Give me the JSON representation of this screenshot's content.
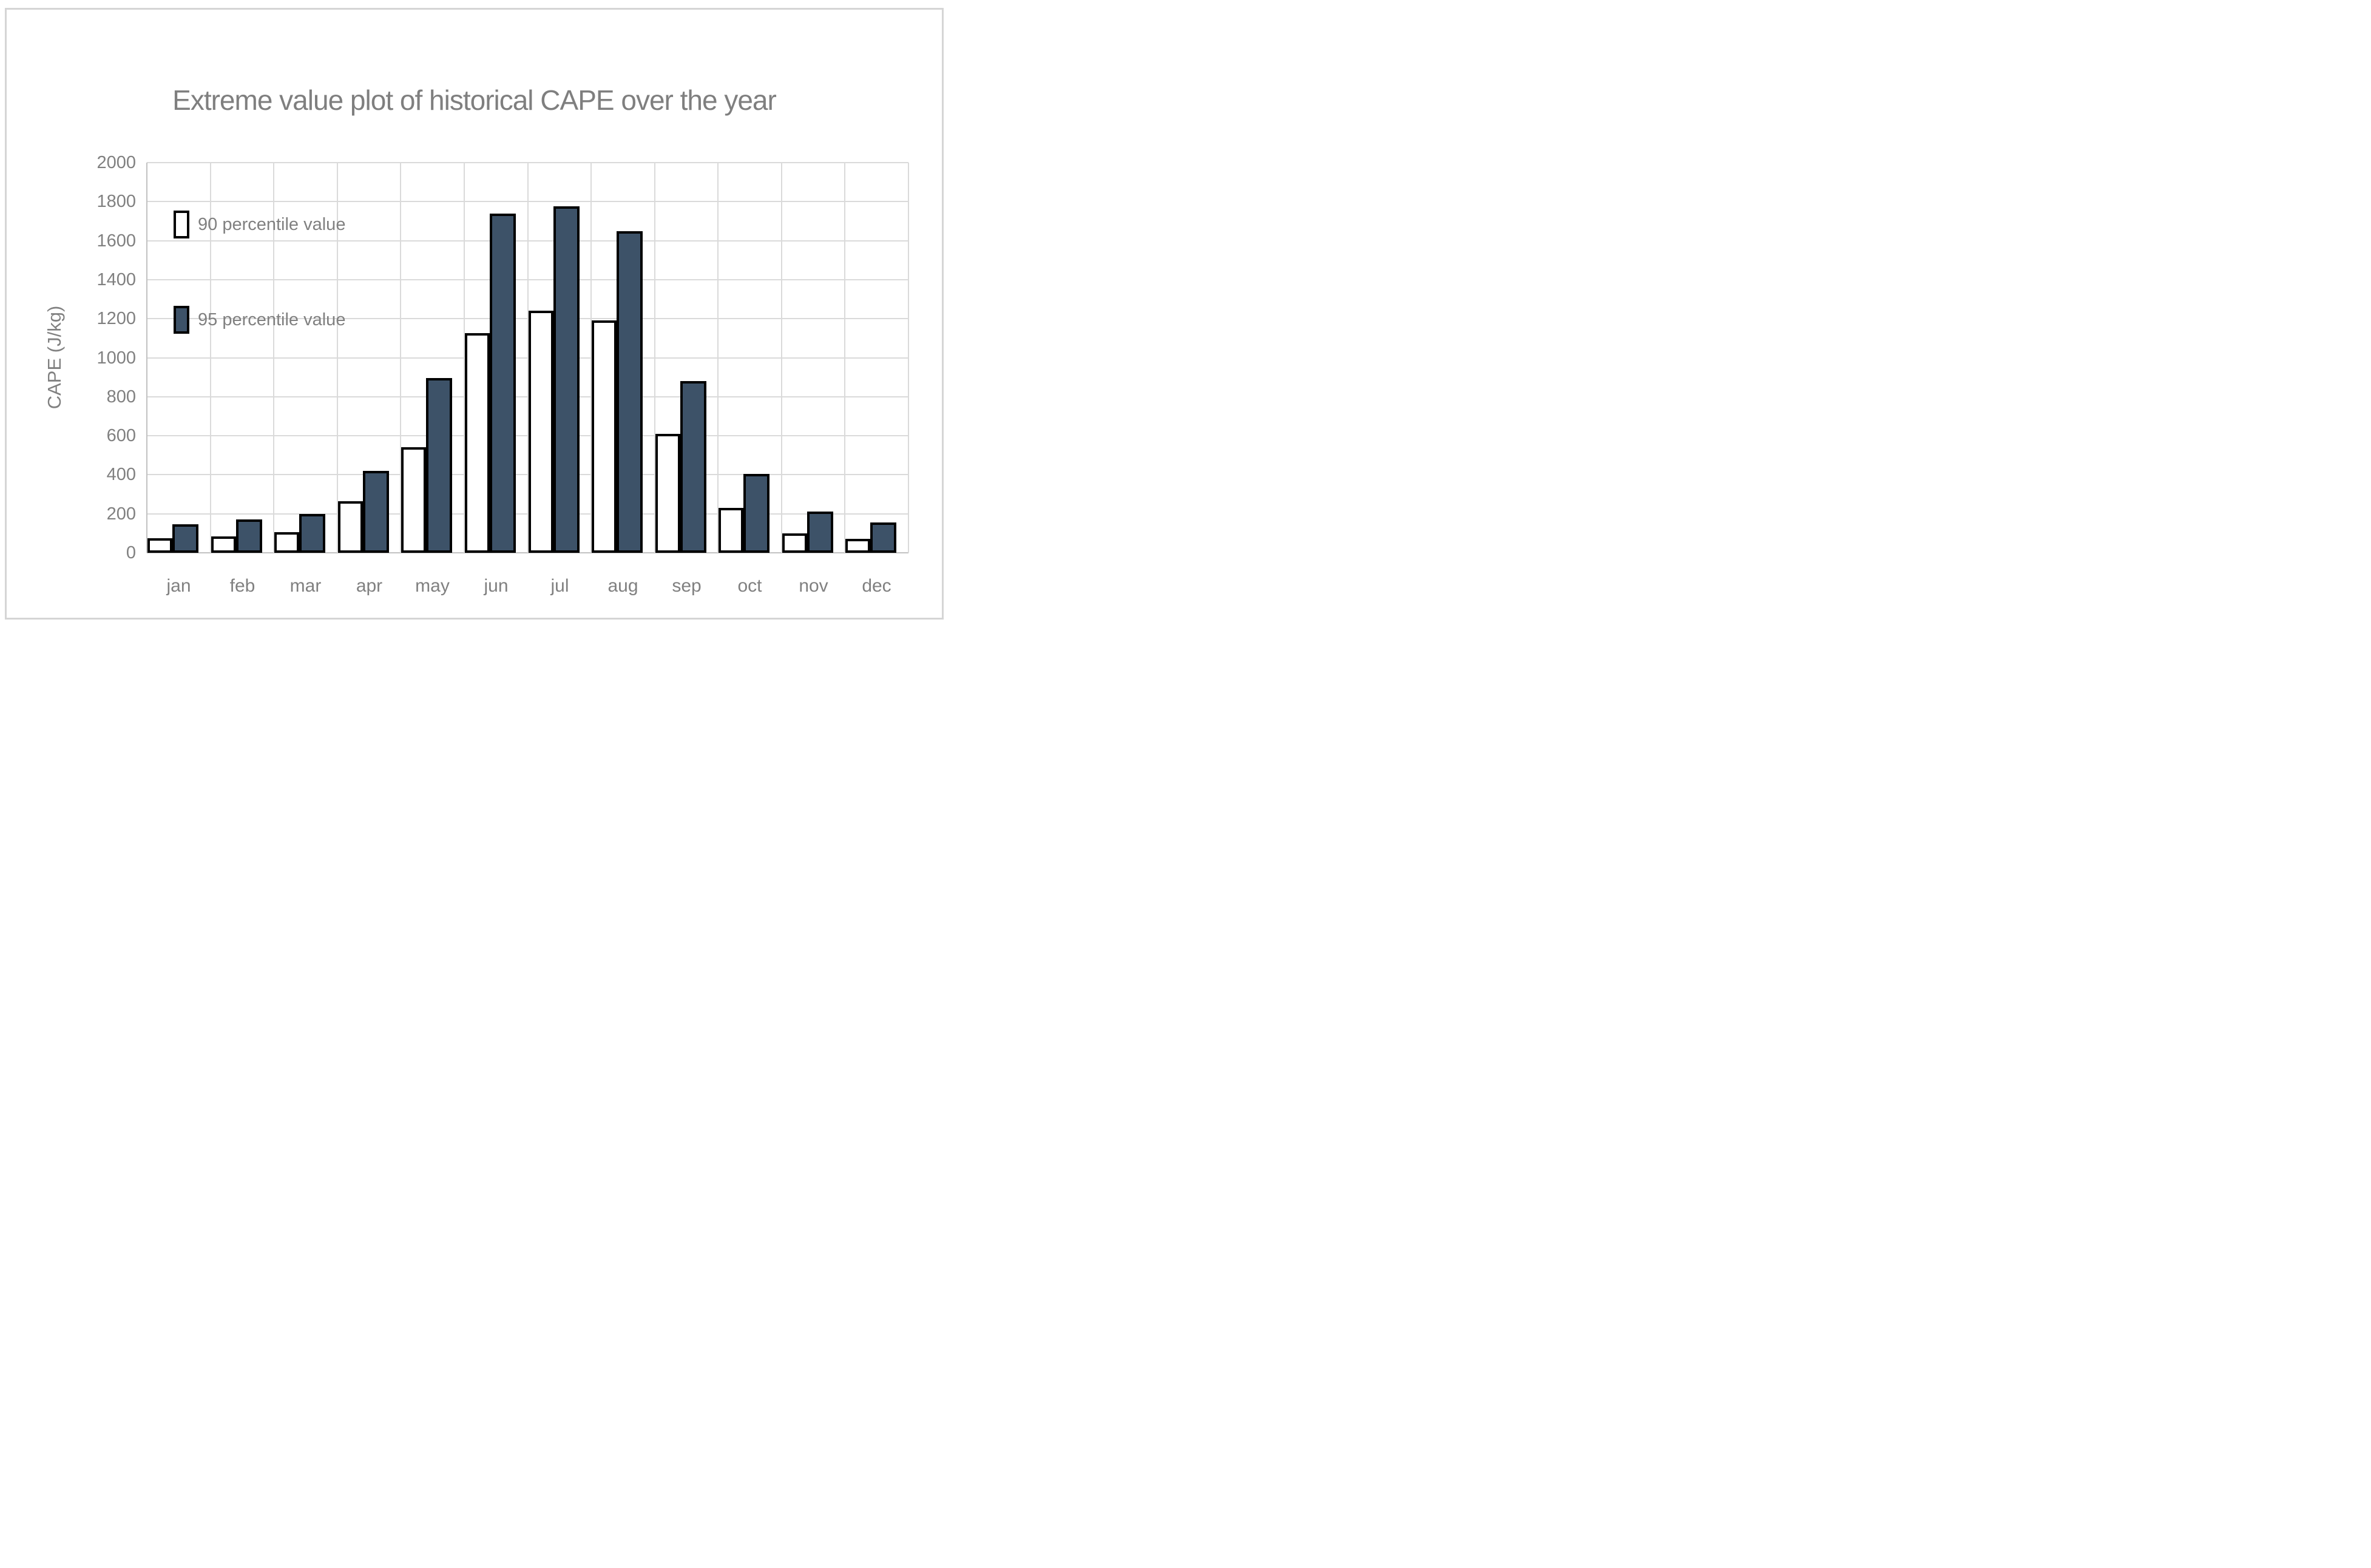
{
  "chart_data": {
    "type": "bar",
    "title": "Extreme value plot of historical CAPE over the year",
    "xlabel": "",
    "ylabel": "CAPE  (J/kg)",
    "categories": [
      "jan",
      "feb",
      "mar",
      "apr",
      "may",
      "jun",
      "jul",
      "aug",
      "sep",
      "oct",
      "nov",
      "dec"
    ],
    "series": [
      {
        "name": "90 percentile value",
        "fill": "#FFFFFF",
        "border": "#000000",
        "values": [
          75,
          85,
          105,
          265,
          540,
          1125,
          1240,
          1190,
          610,
          230,
          100,
          70
        ]
      },
      {
        "name": "95 percentile value",
        "fill": "#3D5268",
        "border": "#000000",
        "values": [
          145,
          170,
          200,
          420,
          895,
          1740,
          1775,
          1650,
          880,
          405,
          210,
          155
        ]
      }
    ],
    "ylim": [
      0,
      2000
    ],
    "ytick_step": 200,
    "ytick_labels": [
      "2000",
      "1800",
      "1600",
      "1400",
      "1200",
      "1000",
      "800",
      "600",
      "400",
      "200",
      "0"
    ],
    "grid": true,
    "legend_position": "inside-top-left"
  },
  "colors": {
    "background": "#FFFFFF",
    "frame_border": "#D5D5D5",
    "title_text": "#7F7F7F",
    "text": "#808080",
    "gridline": "#DADADA",
    "axis_line": "#C2C2C2",
    "bar_border": "#000000"
  }
}
